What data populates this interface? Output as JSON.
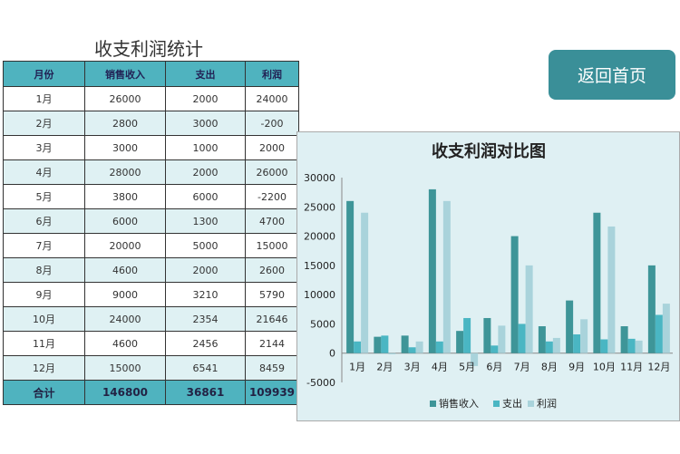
{
  "table": {
    "title": "收支利润统计",
    "headers": [
      "月份",
      "销售收入",
      "支出",
      "利润"
    ],
    "rows": [
      [
        "1月",
        "26000",
        "2000",
        "24000"
      ],
      [
        "2月",
        "2800",
        "3000",
        "-200"
      ],
      [
        "3月",
        "3000",
        "1000",
        "2000"
      ],
      [
        "4月",
        "28000",
        "2000",
        "26000"
      ],
      [
        "5月",
        "3800",
        "6000",
        "-2200"
      ],
      [
        "6月",
        "6000",
        "1300",
        "4700"
      ],
      [
        "7月",
        "20000",
        "5000",
        "15000"
      ],
      [
        "8月",
        "4600",
        "2000",
        "2600"
      ],
      [
        "9月",
        "9000",
        "3210",
        "5790"
      ],
      [
        "10月",
        "24000",
        "2354",
        "21646"
      ],
      [
        "11月",
        "4600",
        "2456",
        "2144"
      ],
      [
        "12月",
        "15000",
        "6541",
        "8459"
      ]
    ],
    "total": [
      "合计",
      "146800",
      "36861",
      "109939"
    ]
  },
  "button": {
    "label": "返回首页"
  },
  "chart_data": {
    "type": "bar",
    "title": "收支利润对比图",
    "categories": [
      "1月",
      "2月",
      "3月",
      "4月",
      "5月",
      "6月",
      "7月",
      "8月",
      "9月",
      "10月",
      "11月",
      "12月"
    ],
    "series": [
      {
        "name": "销售收入",
        "color": "#3e9598",
        "values": [
          26000,
          2800,
          3000,
          28000,
          3800,
          6000,
          20000,
          4600,
          9000,
          24000,
          4600,
          15000
        ]
      },
      {
        "name": "支出",
        "color": "#4ab6c3",
        "values": [
          2000,
          3000,
          1000,
          2000,
          6000,
          1300,
          5000,
          2000,
          3210,
          2354,
          2456,
          6541
        ]
      },
      {
        "name": "利润",
        "color": "#a9d3db",
        "values": [
          24000,
          -200,
          2000,
          26000,
          -2200,
          4700,
          15000,
          2600,
          5790,
          21646,
          2144,
          8459
        ]
      }
    ],
    "ylim": [
      -5000,
      30000
    ],
    "yticks": [
      "30000",
      "25000",
      "20000",
      "15000",
      "10000",
      "5000",
      "0",
      "-5000"
    ],
    "legend": "bottom",
    "grid": false
  }
}
